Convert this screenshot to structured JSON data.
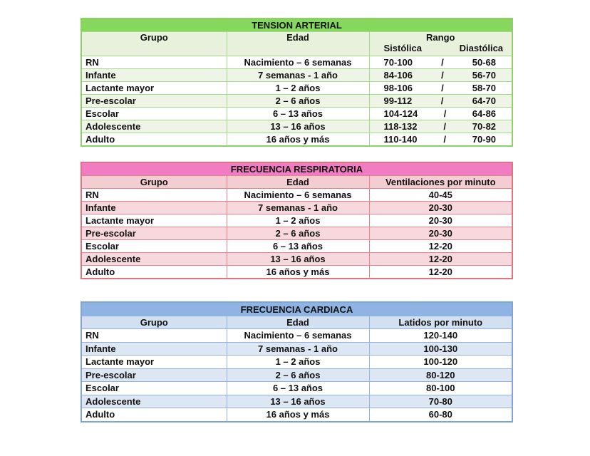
{
  "tables": [
    {
      "title": "TENSION ARTERIAL",
      "headers": [
        "Grupo",
        "Edad",
        "Rango"
      ],
      "subheaders": [
        "Sistólica",
        "Diastólica"
      ],
      "color": "#86d85c",
      "rows": [
        {
          "grupo": "RN",
          "edad": "Nacimiento – 6 semanas",
          "sistolica": "70-100",
          "sep": "/",
          "diastolica": "50-68"
        },
        {
          "grupo": "Infante",
          "edad": "7 semanas -  1 año",
          "sistolica": "84-106",
          "sep": "/",
          "diastolica": "56-70"
        },
        {
          "grupo": "Lactante mayor",
          "edad": "1 – 2 años",
          "sistolica": "98-106",
          "sep": "/",
          "diastolica": "58-70"
        },
        {
          "grupo": "Pre-escolar",
          "edad": "2 – 6 años",
          "sistolica": "99-112",
          "sep": "/",
          "diastolica": "64-70"
        },
        {
          "grupo": "Escolar",
          "edad": "6 – 13 años",
          "sistolica": "104-124",
          "sep": "/",
          "diastolica": "64-86"
        },
        {
          "grupo": "Adolescente",
          "edad": "13 – 16 años",
          "sistolica": "118-132",
          "sep": "/",
          "diastolica": "70-82"
        },
        {
          "grupo": "Adulto",
          "edad": "16 años y más",
          "sistolica": "110-140",
          "sep": "/",
          "diastolica": "70-90"
        }
      ]
    },
    {
      "title": "FRECUENCIA RESPIRATORIA",
      "headers": [
        "Grupo",
        "Edad",
        "Ventilaciones por minuto"
      ],
      "color": "#f27cc2",
      "rows": [
        {
          "grupo": "RN",
          "edad": "Nacimiento – 6 semanas",
          "valor": "40-45"
        },
        {
          "grupo": "Infante",
          "edad": "7 semanas -  1 año",
          "valor": "20-30"
        },
        {
          "grupo": "Lactante mayor",
          "edad": "1 – 2 años",
          "valor": "20-30"
        },
        {
          "grupo": "Pre-escolar",
          "edad": "2 – 6 años",
          "valor": "20-30"
        },
        {
          "grupo": "Escolar",
          "edad": "6 – 13 años",
          "valor": "12-20"
        },
        {
          "grupo": "Adolescente",
          "edad": "13 – 16 años",
          "valor": "12-20"
        },
        {
          "grupo": "Adulto",
          "edad": "16 años y más",
          "valor": "12-20"
        }
      ]
    },
    {
      "title": "FRECUENCIA CARDIACA",
      "headers": [
        "Grupo",
        "Edad",
        "Latidos por minuto"
      ],
      "color": "#8fb4e3",
      "rows": [
        {
          "grupo": "RN",
          "edad": "Nacimiento – 6 semanas",
          "valor": "120-140"
        },
        {
          "grupo": "Infante",
          "edad": "7 semanas -  1 año",
          "valor": "100-130"
        },
        {
          "grupo": "Lactante mayor",
          "edad": "1 – 2 años",
          "valor": "100-120"
        },
        {
          "grupo": "Pre-escolar",
          "edad": "2 – 6 años",
          "valor": "80-120"
        },
        {
          "grupo": "Escolar",
          "edad": "6 – 13 años",
          "valor": "80-100"
        },
        {
          "grupo": "Adolescente",
          "edad": "13 – 16 años",
          "valor": "70-80"
        },
        {
          "grupo": "Adulto",
          "edad": "16 años y más",
          "valor": "60-80"
        }
      ]
    }
  ]
}
